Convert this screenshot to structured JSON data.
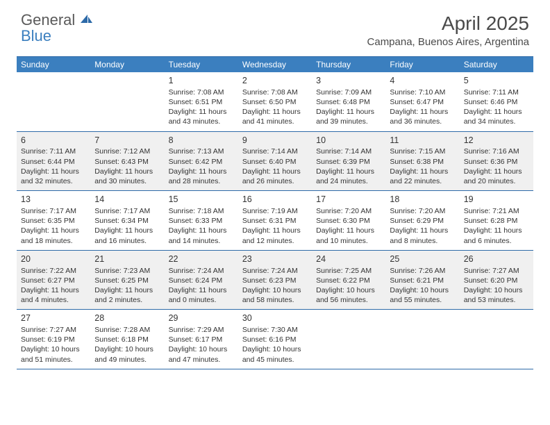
{
  "brand": {
    "part1": "General",
    "part2": "Blue"
  },
  "title": "April 2025",
  "location": "Campana, Buenos Aires, Argentina",
  "colors": {
    "header_bar": "#3b7fbf",
    "rule": "#2d6aa8",
    "alt_row_bg": "#f0f0f0",
    "text": "#333333",
    "title_text": "#4a4a4a",
    "logo_gray": "#5a5a5a",
    "logo_blue": "#3b7fbf"
  },
  "weekdays": [
    "Sunday",
    "Monday",
    "Tuesday",
    "Wednesday",
    "Thursday",
    "Friday",
    "Saturday"
  ],
  "weeks": [
    {
      "alt": false,
      "days": [
        null,
        null,
        {
          "n": "1",
          "sr": "Sunrise: 7:08 AM",
          "ss": "Sunset: 6:51 PM",
          "dl": "Daylight: 11 hours and 43 minutes."
        },
        {
          "n": "2",
          "sr": "Sunrise: 7:08 AM",
          "ss": "Sunset: 6:50 PM",
          "dl": "Daylight: 11 hours and 41 minutes."
        },
        {
          "n": "3",
          "sr": "Sunrise: 7:09 AM",
          "ss": "Sunset: 6:48 PM",
          "dl": "Daylight: 11 hours and 39 minutes."
        },
        {
          "n": "4",
          "sr": "Sunrise: 7:10 AM",
          "ss": "Sunset: 6:47 PM",
          "dl": "Daylight: 11 hours and 36 minutes."
        },
        {
          "n": "5",
          "sr": "Sunrise: 7:11 AM",
          "ss": "Sunset: 6:46 PM",
          "dl": "Daylight: 11 hours and 34 minutes."
        }
      ]
    },
    {
      "alt": true,
      "days": [
        {
          "n": "6",
          "sr": "Sunrise: 7:11 AM",
          "ss": "Sunset: 6:44 PM",
          "dl": "Daylight: 11 hours and 32 minutes."
        },
        {
          "n": "7",
          "sr": "Sunrise: 7:12 AM",
          "ss": "Sunset: 6:43 PM",
          "dl": "Daylight: 11 hours and 30 minutes."
        },
        {
          "n": "8",
          "sr": "Sunrise: 7:13 AM",
          "ss": "Sunset: 6:42 PM",
          "dl": "Daylight: 11 hours and 28 minutes."
        },
        {
          "n": "9",
          "sr": "Sunrise: 7:14 AM",
          "ss": "Sunset: 6:40 PM",
          "dl": "Daylight: 11 hours and 26 minutes."
        },
        {
          "n": "10",
          "sr": "Sunrise: 7:14 AM",
          "ss": "Sunset: 6:39 PM",
          "dl": "Daylight: 11 hours and 24 minutes."
        },
        {
          "n": "11",
          "sr": "Sunrise: 7:15 AM",
          "ss": "Sunset: 6:38 PM",
          "dl": "Daylight: 11 hours and 22 minutes."
        },
        {
          "n": "12",
          "sr": "Sunrise: 7:16 AM",
          "ss": "Sunset: 6:36 PM",
          "dl": "Daylight: 11 hours and 20 minutes."
        }
      ]
    },
    {
      "alt": false,
      "days": [
        {
          "n": "13",
          "sr": "Sunrise: 7:17 AM",
          "ss": "Sunset: 6:35 PM",
          "dl": "Daylight: 11 hours and 18 minutes."
        },
        {
          "n": "14",
          "sr": "Sunrise: 7:17 AM",
          "ss": "Sunset: 6:34 PM",
          "dl": "Daylight: 11 hours and 16 minutes."
        },
        {
          "n": "15",
          "sr": "Sunrise: 7:18 AM",
          "ss": "Sunset: 6:33 PM",
          "dl": "Daylight: 11 hours and 14 minutes."
        },
        {
          "n": "16",
          "sr": "Sunrise: 7:19 AM",
          "ss": "Sunset: 6:31 PM",
          "dl": "Daylight: 11 hours and 12 minutes."
        },
        {
          "n": "17",
          "sr": "Sunrise: 7:20 AM",
          "ss": "Sunset: 6:30 PM",
          "dl": "Daylight: 11 hours and 10 minutes."
        },
        {
          "n": "18",
          "sr": "Sunrise: 7:20 AM",
          "ss": "Sunset: 6:29 PM",
          "dl": "Daylight: 11 hours and 8 minutes."
        },
        {
          "n": "19",
          "sr": "Sunrise: 7:21 AM",
          "ss": "Sunset: 6:28 PM",
          "dl": "Daylight: 11 hours and 6 minutes."
        }
      ]
    },
    {
      "alt": true,
      "days": [
        {
          "n": "20",
          "sr": "Sunrise: 7:22 AM",
          "ss": "Sunset: 6:27 PM",
          "dl": "Daylight: 11 hours and 4 minutes."
        },
        {
          "n": "21",
          "sr": "Sunrise: 7:23 AM",
          "ss": "Sunset: 6:25 PM",
          "dl": "Daylight: 11 hours and 2 minutes."
        },
        {
          "n": "22",
          "sr": "Sunrise: 7:24 AM",
          "ss": "Sunset: 6:24 PM",
          "dl": "Daylight: 11 hours and 0 minutes."
        },
        {
          "n": "23",
          "sr": "Sunrise: 7:24 AM",
          "ss": "Sunset: 6:23 PM",
          "dl": "Daylight: 10 hours and 58 minutes."
        },
        {
          "n": "24",
          "sr": "Sunrise: 7:25 AM",
          "ss": "Sunset: 6:22 PM",
          "dl": "Daylight: 10 hours and 56 minutes."
        },
        {
          "n": "25",
          "sr": "Sunrise: 7:26 AM",
          "ss": "Sunset: 6:21 PM",
          "dl": "Daylight: 10 hours and 55 minutes."
        },
        {
          "n": "26",
          "sr": "Sunrise: 7:27 AM",
          "ss": "Sunset: 6:20 PM",
          "dl": "Daylight: 10 hours and 53 minutes."
        }
      ]
    },
    {
      "alt": false,
      "days": [
        {
          "n": "27",
          "sr": "Sunrise: 7:27 AM",
          "ss": "Sunset: 6:19 PM",
          "dl": "Daylight: 10 hours and 51 minutes."
        },
        {
          "n": "28",
          "sr": "Sunrise: 7:28 AM",
          "ss": "Sunset: 6:18 PM",
          "dl": "Daylight: 10 hours and 49 minutes."
        },
        {
          "n": "29",
          "sr": "Sunrise: 7:29 AM",
          "ss": "Sunset: 6:17 PM",
          "dl": "Daylight: 10 hours and 47 minutes."
        },
        {
          "n": "30",
          "sr": "Sunrise: 7:30 AM",
          "ss": "Sunset: 6:16 PM",
          "dl": "Daylight: 10 hours and 45 minutes."
        },
        null,
        null,
        null
      ]
    }
  ]
}
